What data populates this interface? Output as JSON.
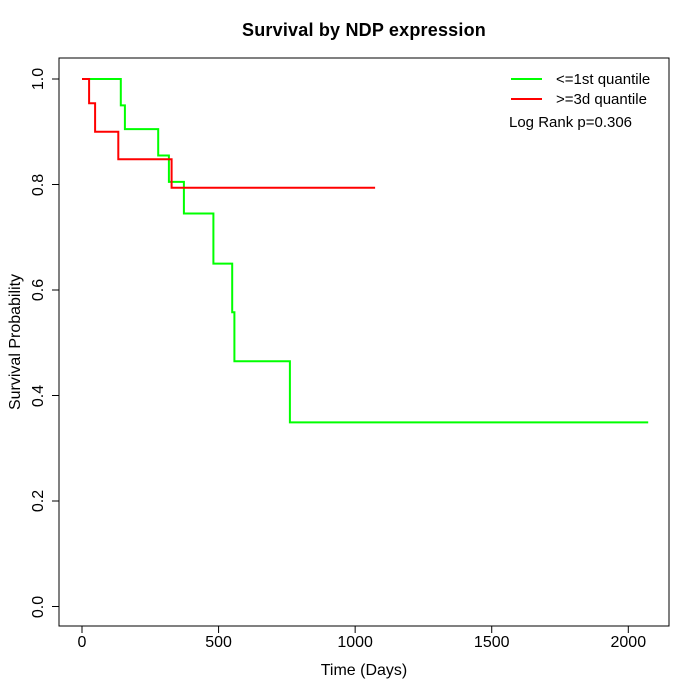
{
  "title": "Survival by NDP expression",
  "axes": {
    "x": {
      "label": "Time (Days)",
      "tick_labels": [
        "0",
        "500",
        "1000",
        "1500",
        "2000"
      ],
      "tick_values": [
        0,
        500,
        1000,
        1500,
        2000
      ],
      "range": [
        0,
        2000
      ]
    },
    "y": {
      "label": "Survival Probability",
      "tick_labels": [
        "0.0",
        "0.2",
        "0.4",
        "0.6",
        "0.8",
        "1.0"
      ],
      "tick_values": [
        0,
        0.2,
        0.4,
        0.6,
        0.8,
        1.0
      ],
      "range": [
        0,
        1
      ]
    }
  },
  "legend": {
    "items": [
      {
        "label": "<=1st quantile",
        "color": "#00ff00"
      },
      {
        "label": ">=3d quantile",
        "color": "#ff0000"
      }
    ],
    "note": "Log Rank p=0.306"
  },
  "chart_data": {
    "type": "line",
    "subtype": "kaplan-meier-step",
    "title": "Survival by NDP expression",
    "xlabel": "Time (Days)",
    "ylabel": "Survival Probability",
    "xlim": [
      0,
      2100
    ],
    "ylim": [
      0,
      1
    ],
    "grid": false,
    "legend_position": "top-right",
    "annotation": "Log Rank p=0.306",
    "series": [
      {
        "name": "<=1st quantile",
        "color": "#00ff00",
        "end_time": 2073,
        "steps": [
          [
            0,
            1.0
          ],
          [
            142,
            0.95
          ],
          [
            157,
            0.905
          ],
          [
            279,
            0.855
          ],
          [
            318,
            0.805
          ],
          [
            373,
            0.745
          ],
          [
            481,
            0.65
          ],
          [
            550,
            0.558
          ],
          [
            558,
            0.465
          ],
          [
            761,
            0.349
          ]
        ]
      },
      {
        "name": ">=3d quantile",
        "color": "#ff0000",
        "end_time": 1073,
        "steps": [
          [
            0,
            1.0
          ],
          [
            26,
            0.954
          ],
          [
            48,
            0.9
          ],
          [
            133,
            0.848
          ],
          [
            328,
            0.794
          ]
        ]
      }
    ]
  }
}
